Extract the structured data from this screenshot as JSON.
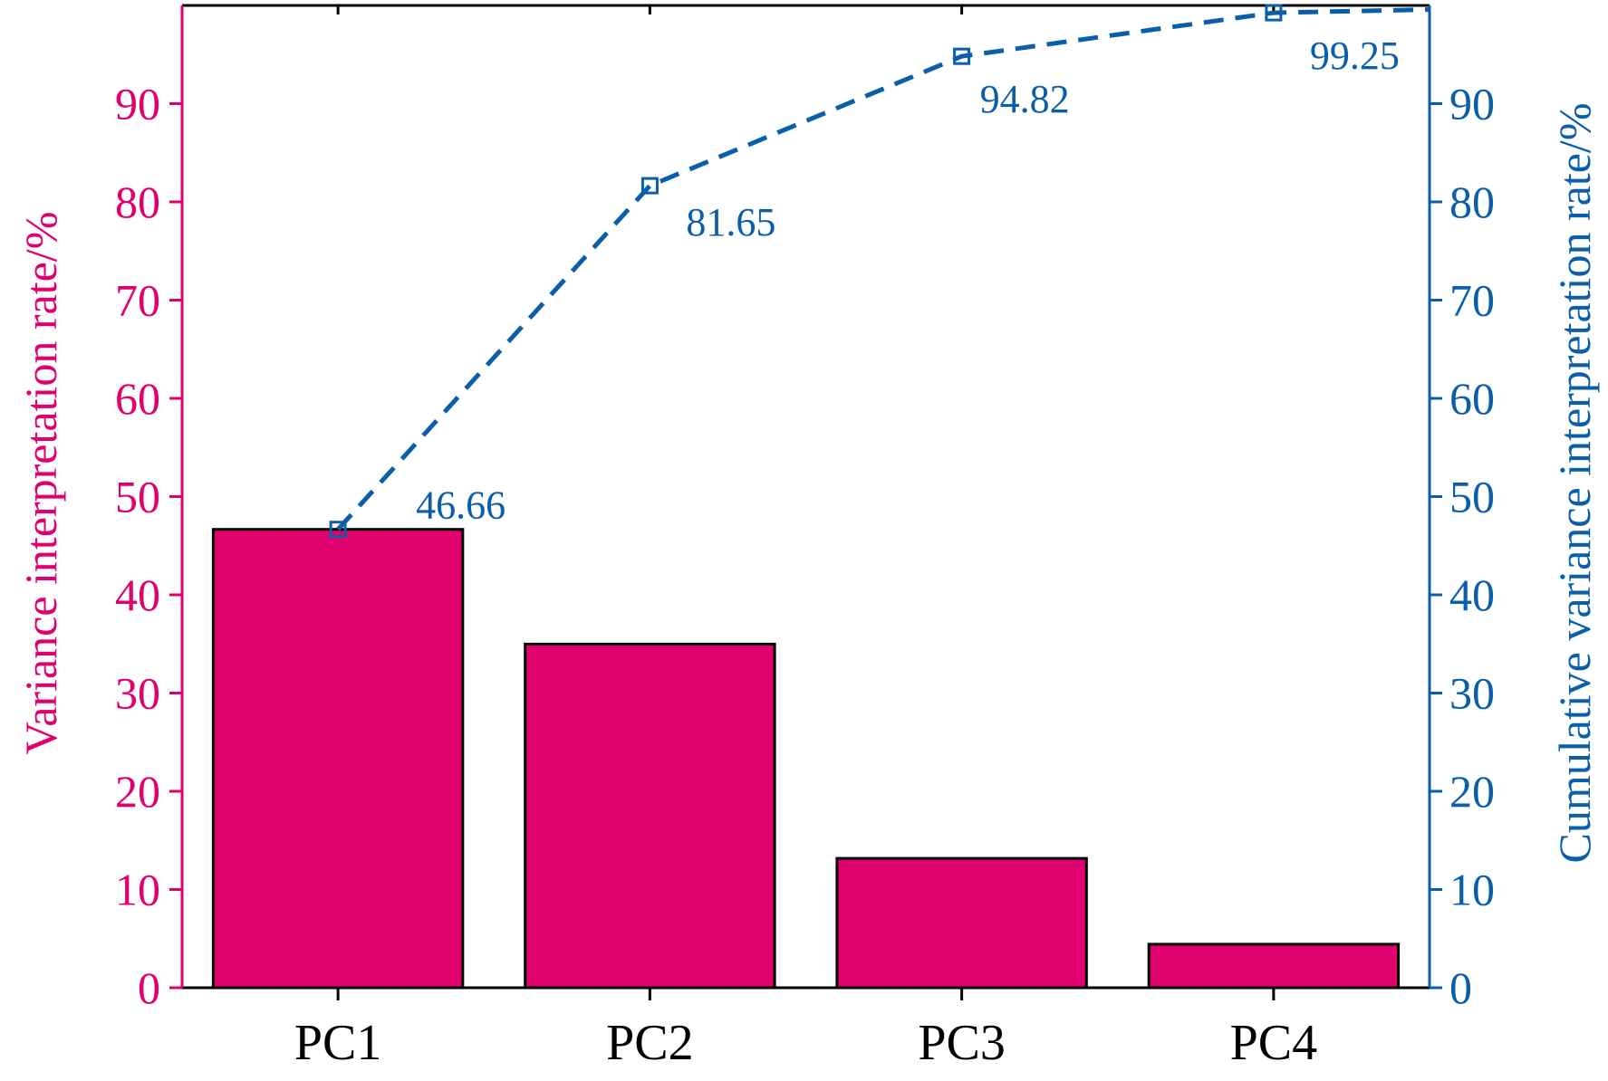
{
  "chart_data": {
    "type": "bar",
    "categories": [
      "PC1",
      "PC2",
      "PC3",
      "PC4"
    ],
    "series": [
      {
        "type": "bar",
        "axis": "left",
        "values": [
          46.66,
          34.99,
          13.17,
          4.43
        ],
        "color": "#e0006e"
      },
      {
        "type": "line",
        "axis": "right",
        "values": [
          46.66,
          81.65,
          94.82,
          99.25
        ],
        "color": "#0b5ea8",
        "line_style": "dashed",
        "marker": "open-square",
        "data_labels": [
          "46.66",
          "81.65",
          "94.82",
          "99.25"
        ]
      }
    ],
    "ylabel": "Variance interpretation rate/%",
    "y2label": "Cumulative variance interpretation rate/%",
    "ylim": [
      0,
      100
    ],
    "y2lim": [
      0,
      100
    ],
    "yticks": [
      "0",
      "10",
      "20",
      "30",
      "40",
      "50",
      "60",
      "70",
      "80",
      "90"
    ],
    "y2ticks": [
      "0",
      "10",
      "20",
      "30",
      "40",
      "50",
      "60",
      "70",
      "80",
      "90"
    ],
    "grid": false,
    "legend": "none",
    "colors": {
      "left_axis": "#e0006e",
      "right_axis": "#0b5ea8",
      "bar_edge": "#000000"
    }
  }
}
